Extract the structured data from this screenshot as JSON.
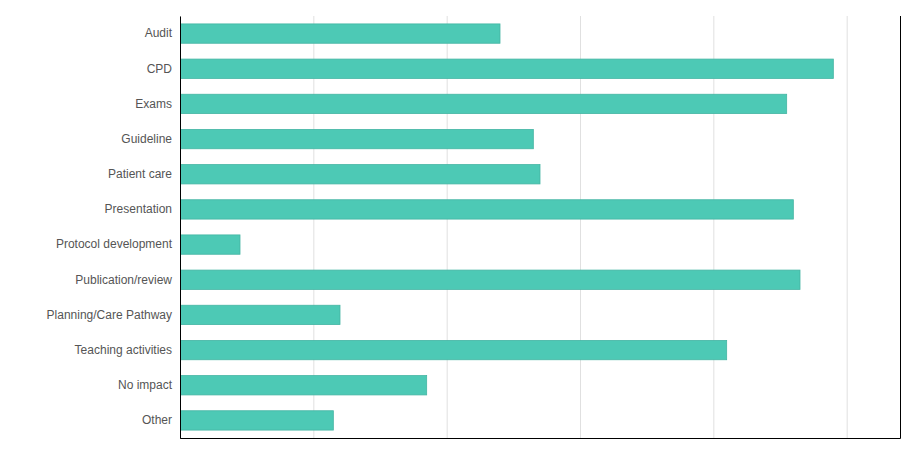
{
  "chart_data": {
    "type": "bar",
    "orientation": "horizontal",
    "categories": [
      "Audit",
      "CPD",
      "Exams",
      "Guideline",
      "Patient care",
      "Presentation",
      "Protocol development",
      "Publication/review",
      "Planning/Care Pathway",
      "Teaching activities",
      "No impact",
      "Other"
    ],
    "values": [
      48,
      98,
      91,
      53,
      54,
      92,
      9,
      93,
      24,
      82,
      37,
      23
    ],
    "color": "#4dc9b5",
    "xlim": [
      0,
      108
    ],
    "xticks": [
      0,
      20,
      40,
      60,
      80,
      100
    ],
    "grid": true,
    "tick_labels": "y"
  }
}
